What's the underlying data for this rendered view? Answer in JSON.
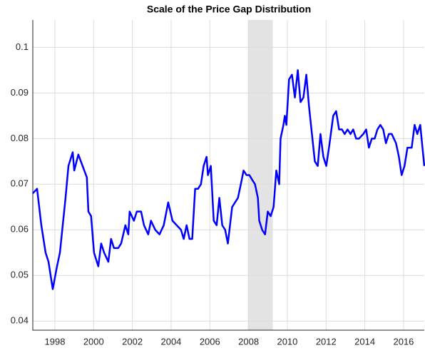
{
  "chart_data": {
    "type": "line",
    "title": "Scale of the Price Gap Distribution",
    "x": [
      1996.86,
      1997.08,
      1997.3,
      1997.52,
      1997.67,
      1997.89,
      1998.11,
      1998.26,
      1998.55,
      1998.7,
      1998.92,
      1999.0,
      1999.21,
      1999.43,
      1999.65,
      1999.73,
      1999.87,
      2000.02,
      2000.24,
      2000.39,
      2000.54,
      2000.76,
      2000.9,
      2001.05,
      2001.27,
      2001.42,
      2001.64,
      2001.79,
      2001.86,
      2002.08,
      2002.23,
      2002.45,
      2002.6,
      2002.82,
      2002.96,
      2003.18,
      2003.4,
      2003.62,
      2003.85,
      2004.07,
      2004.29,
      2004.51,
      2004.65,
      2004.8,
      2004.95,
      2005.09,
      2005.24,
      2005.39,
      2005.54,
      2005.68,
      2005.83,
      2005.9,
      2006.05,
      2006.2,
      2006.35,
      2006.49,
      2006.64,
      2006.79,
      2006.93,
      2007.15,
      2007.3,
      2007.45,
      2007.6,
      2007.74,
      2007.89,
      2008.04,
      2008.18,
      2008.33,
      2008.48,
      2008.55,
      2008.7,
      2008.85,
      2008.99,
      2009.14,
      2009.29,
      2009.43,
      2009.58,
      2009.65,
      2009.8,
      2009.87,
      2009.95,
      2010.09,
      2010.24,
      2010.39,
      2010.54,
      2010.68,
      2010.83,
      2010.98,
      2011.12,
      2011.27,
      2011.42,
      2011.57,
      2011.71,
      2011.86,
      2012.01,
      2012.15,
      2012.37,
      2012.52,
      2012.67,
      2012.82,
      2012.96,
      2013.11,
      2013.26,
      2013.4,
      2013.55,
      2013.7,
      2013.92,
      2014.07,
      2014.21,
      2014.36,
      2014.51,
      2014.65,
      2014.8,
      2014.95,
      2015.09,
      2015.24,
      2015.39,
      2015.61,
      2015.76,
      2015.9,
      2016.05,
      2016.2,
      2016.42,
      2016.57,
      2016.71,
      2016.86,
      2017.07
    ],
    "series": [
      {
        "color": "#0000ff",
        "values": [
          0.068,
          0.069,
          0.061,
          0.055,
          0.053,
          0.047,
          0.052,
          0.055,
          0.067,
          0.074,
          0.077,
          0.073,
          0.0765,
          0.074,
          0.0715,
          0.064,
          0.063,
          0.055,
          0.052,
          0.057,
          0.055,
          0.053,
          0.058,
          0.056,
          0.056,
          0.057,
          0.061,
          0.059,
          0.064,
          0.062,
          0.064,
          0.064,
          0.061,
          0.059,
          0.062,
          0.06,
          0.059,
          0.061,
          0.066,
          0.062,
          0.061,
          0.06,
          0.058,
          0.061,
          0.058,
          0.058,
          0.069,
          0.069,
          0.07,
          0.074,
          0.076,
          0.072,
          0.074,
          0.062,
          0.061,
          0.067,
          0.061,
          0.06,
          0.057,
          0.065,
          0.066,
          0.067,
          0.07,
          0.073,
          0.072,
          0.072,
          0.071,
          0.07,
          0.067,
          0.062,
          0.06,
          0.059,
          0.064,
          0.063,
          0.065,
          0.073,
          0.07,
          0.08,
          0.083,
          0.085,
          0.083,
          0.093,
          0.094,
          0.089,
          0.095,
          0.088,
          0.089,
          0.094,
          0.087,
          0.081,
          0.075,
          0.074,
          0.081,
          0.076,
          0.074,
          0.078,
          0.085,
          0.086,
          0.082,
          0.082,
          0.081,
          0.082,
          0.081,
          0.082,
          0.08,
          0.08,
          0.081,
          0.082,
          0.078,
          0.08,
          0.08,
          0.082,
          0.083,
          0.082,
          0.079,
          0.081,
          0.081,
          0.079,
          0.076,
          0.072,
          0.074,
          0.078,
          0.078,
          0.083,
          0.081,
          0.083,
          0.074
        ]
      }
    ],
    "shaded_region": [
      2007.96,
      2009.25
    ],
    "shade_color": "#e3e3e3",
    "xlim": [
      1996.86,
      2017.07
    ],
    "xticks": [
      1998,
      2000,
      2002,
      2004,
      2006,
      2008,
      2010,
      2012,
      2014,
      2016
    ],
    "ylim": [
      0.038,
      0.106
    ],
    "yticks": [
      0.04,
      0.05,
      0.06,
      0.07,
      0.08,
      0.09,
      0.1
    ],
    "grid": true
  }
}
